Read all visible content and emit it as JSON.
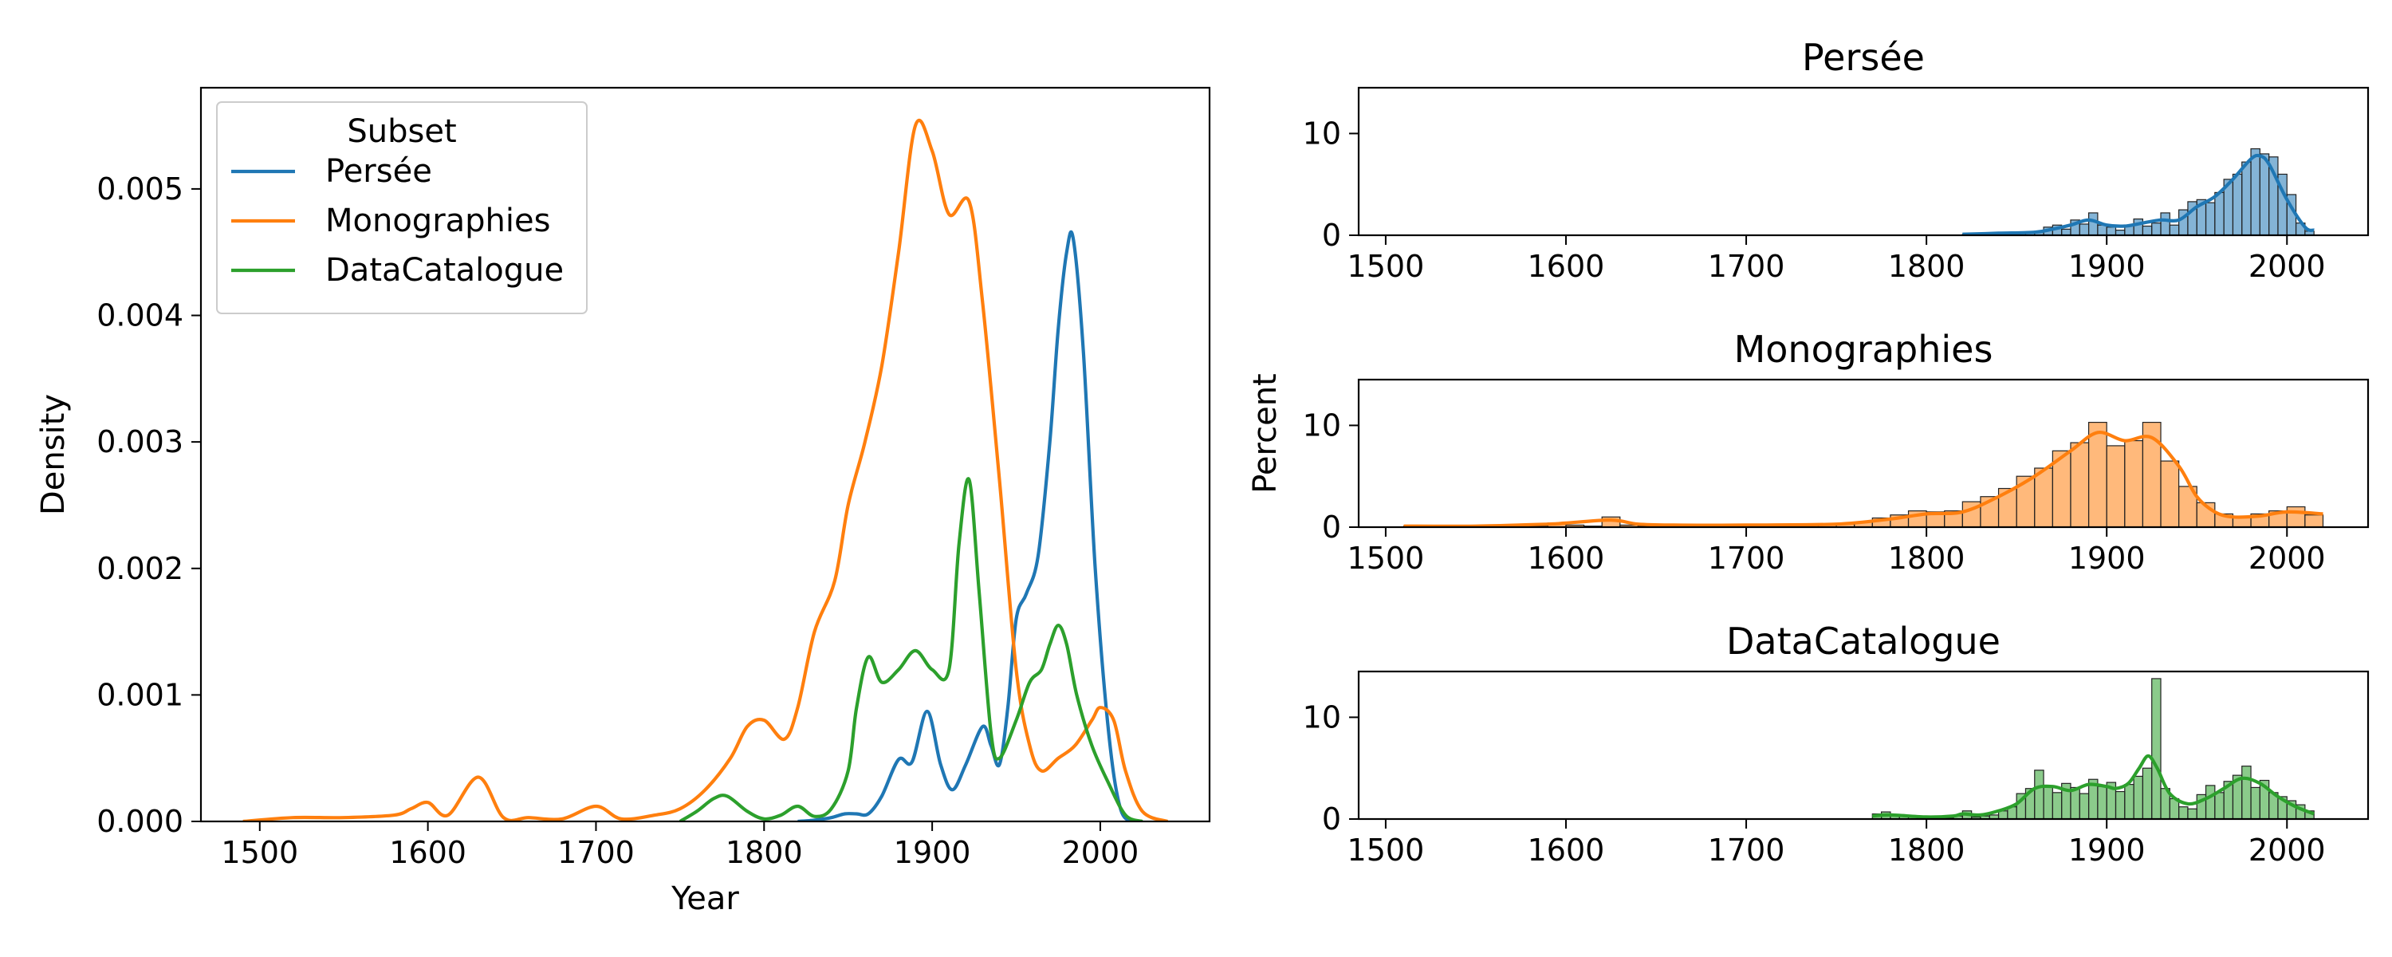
{
  "chart_data": [
    {
      "type": "line",
      "subtype": "kde",
      "xlabel": "Year",
      "ylabel": "Density",
      "xlim": [
        1465,
        2065
      ],
      "ylim": [
        0,
        0.0058
      ],
      "xticks": [
        1500,
        1600,
        1700,
        1800,
        1900,
        2000
      ],
      "yticks": [
        0,
        0.001,
        0.002,
        0.003,
        0.004,
        0.005
      ],
      "ytick_labels": [
        "0.000",
        "0.001",
        "0.002",
        "0.003",
        "0.004",
        "0.005"
      ],
      "legend": {
        "title": "Subset",
        "placement": "upper-left"
      },
      "series": [
        {
          "name": "Persée",
          "color": "#1f77b4",
          "x": [
            1820,
            1830,
            1840,
            1848,
            1855,
            1862,
            1870,
            1880,
            1888,
            1897,
            1905,
            1912,
            1920,
            1930,
            1935,
            1940,
            1945,
            1950,
            1956,
            1963,
            1970,
            1975,
            1980,
            1984,
            1990,
            1997,
            2005,
            2012,
            2020
          ],
          "y": [
            0,
            1e-05,
            3e-05,
            6e-05,
            6e-05,
            6e-05,
            0.0002,
            0.00049,
            0.00047,
            0.00087,
            0.00045,
            0.00025,
            0.00045,
            0.00075,
            0.0006,
            0.00045,
            0.0009,
            0.0016,
            0.0018,
            0.0021,
            0.003,
            0.0039,
            0.0045,
            0.0046,
            0.0037,
            0.002,
            0.0007,
            0.0001,
            0
          ]
        },
        {
          "name": "Monographies",
          "color": "#ff7f0e",
          "x": [
            1490,
            1520,
            1550,
            1580,
            1590,
            1600,
            1612,
            1630,
            1645,
            1660,
            1680,
            1700,
            1715,
            1735,
            1750,
            1765,
            1780,
            1790,
            1800,
            1812,
            1820,
            1830,
            1842,
            1850,
            1860,
            1870,
            1880,
            1890,
            1900,
            1910,
            1922,
            1930,
            1940,
            1950,
            1958,
            1965,
            1975,
            1985,
            1995,
            2000,
            2008,
            2015,
            2025,
            2040
          ],
          "y": [
            0,
            3e-05,
            3e-05,
            5e-05,
            0.0001,
            0.00015,
            5e-05,
            0.00035,
            3e-05,
            3e-05,
            2e-05,
            0.00012,
            2e-05,
            5e-05,
            0.0001,
            0.00025,
            0.0005,
            0.00075,
            0.0008,
            0.00065,
            0.0009,
            0.0015,
            0.0019,
            0.0025,
            0.003,
            0.0036,
            0.0045,
            0.0055,
            0.0053,
            0.0048,
            0.0049,
            0.0041,
            0.0027,
            0.0012,
            0.0006,
            0.0004,
            0.0005,
            0.0006,
            0.0008,
            0.0009,
            0.0008,
            0.0004,
            8e-05,
            0
          ]
        },
        {
          "name": "DataCatalogue",
          "color": "#2ca02c",
          "x": [
            1750,
            1760,
            1770,
            1778,
            1790,
            1800,
            1810,
            1820,
            1830,
            1840,
            1850,
            1855,
            1862,
            1870,
            1880,
            1890,
            1900,
            1910,
            1916,
            1922,
            1928,
            1935,
            1940,
            1950,
            1958,
            1965,
            1970,
            1975,
            1980,
            1986,
            1995,
            2005,
            2015,
            2025
          ],
          "y": [
            0,
            8e-05,
            0.00018,
            0.0002,
            8e-05,
            2e-05,
            5e-05,
            0.00012,
            4e-05,
            0.0001,
            0.0004,
            0.0009,
            0.0013,
            0.0011,
            0.0012,
            0.00135,
            0.0012,
            0.0012,
            0.0022,
            0.0027,
            0.0018,
            0.0007,
            0.0005,
            0.0008,
            0.0011,
            0.0012,
            0.0014,
            0.00155,
            0.0014,
            0.001,
            0.0006,
            0.0003,
            5e-05,
            0
          ]
        }
      ]
    },
    {
      "type": "bar",
      "subtype": "histogram-with-kde",
      "title": "Persée",
      "color": "#1f77b4",
      "xlim": [
        1485,
        2045
      ],
      "ylim": [
        0,
        14.5
      ],
      "xticks": [
        1500,
        1600,
        1700,
        1800,
        1900,
        2000
      ],
      "yticks": [
        0,
        10
      ],
      "bin_width": 5,
      "bins_start": [
        1820,
        1825,
        1830,
        1835,
        1840,
        1845,
        1850,
        1855,
        1860,
        1865,
        1870,
        1875,
        1880,
        1885,
        1890,
        1895,
        1900,
        1905,
        1910,
        1915,
        1920,
        1925,
        1930,
        1935,
        1940,
        1945,
        1950,
        1955,
        1960,
        1965,
        1970,
        1975,
        1980,
        1985,
        1990,
        1995,
        2000,
        2005,
        2010
      ],
      "values": [
        0.1,
        0.1,
        0.2,
        0.1,
        0.2,
        0.3,
        0.2,
        0.3,
        0.4,
        0.8,
        1.0,
        0.6,
        1.5,
        1.1,
        2.2,
        1.0,
        0.8,
        0.5,
        1.0,
        1.6,
        0.9,
        1.2,
        2.2,
        1.0,
        2.5,
        3.3,
        3.5,
        3.2,
        4.2,
        5.5,
        6.0,
        7.2,
        8.5,
        8.0,
        7.7,
        6.0,
        4.0,
        1.2,
        0.4
      ],
      "kde_x": [
        1820,
        1840,
        1860,
        1870,
        1880,
        1890,
        1900,
        1910,
        1920,
        1930,
        1940,
        1950,
        1960,
        1970,
        1980,
        1985,
        1990,
        2000,
        2010,
        2015
      ],
      "kde_y": [
        0.1,
        0.2,
        0.3,
        0.6,
        1.0,
        1.5,
        1.0,
        0.9,
        1.2,
        1.5,
        1.5,
        2.8,
        3.8,
        5.5,
        7.5,
        7.8,
        7.0,
        3.5,
        0.8,
        0.5
      ]
    },
    {
      "type": "bar",
      "subtype": "histogram-with-kde",
      "title": "Monographies",
      "ylabel": "Percent",
      "color": "#ff7f0e",
      "xlim": [
        1485,
        2045
      ],
      "ylim": [
        0,
        14.5
      ],
      "xticks": [
        1500,
        1600,
        1700,
        1800,
        1900,
        2000
      ],
      "yticks": [
        0,
        10
      ],
      "bin_width": 10,
      "bins_start": [
        1510,
        1520,
        1530,
        1540,
        1550,
        1560,
        1570,
        1580,
        1590,
        1600,
        1610,
        1620,
        1630,
        1640,
        1650,
        1660,
        1670,
        1680,
        1690,
        1700,
        1710,
        1720,
        1730,
        1740,
        1750,
        1760,
        1770,
        1780,
        1790,
        1800,
        1810,
        1820,
        1830,
        1840,
        1850,
        1860,
        1870,
        1880,
        1890,
        1900,
        1910,
        1920,
        1930,
        1940,
        1950,
        1960,
        1970,
        1980,
        1990,
        2000,
        2010
      ],
      "values": [
        0.1,
        0.1,
        0.1,
        0.1,
        0.1,
        0.1,
        0.1,
        0.1,
        0.4,
        0.2,
        0.1,
        1.0,
        0.2,
        0.1,
        0.1,
        0.1,
        0.1,
        0.1,
        0.2,
        0.2,
        0.1,
        0.1,
        0.2,
        0.2,
        0.3,
        0.5,
        0.9,
        1.2,
        1.6,
        1.5,
        1.6,
        2.5,
        3.0,
        3.8,
        5.0,
        5.8,
        7.5,
        8.3,
        10.3,
        8.0,
        8.5,
        10.3,
        6.5,
        4.0,
        2.4,
        1.3,
        1.0,
        1.3,
        1.6,
        2.0,
        1.2
      ],
      "kde_x": [
        1510,
        1550,
        1590,
        1600,
        1625,
        1640,
        1660,
        1700,
        1750,
        1780,
        1800,
        1820,
        1840,
        1860,
        1880,
        1895,
        1910,
        1925,
        1940,
        1950,
        1960,
        1970,
        1985,
        2000,
        2020
      ],
      "kde_y": [
        0.1,
        0.1,
        0.3,
        0.4,
        0.7,
        0.3,
        0.2,
        0.2,
        0.3,
        0.8,
        1.3,
        1.5,
        3.0,
        5.0,
        7.5,
        9.3,
        8.5,
        8.8,
        6.0,
        3.0,
        1.5,
        1.0,
        1.1,
        1.5,
        1.3
      ]
    },
    {
      "type": "bar",
      "subtype": "histogram-with-kde",
      "title": "DataCatalogue",
      "color": "#2ca02c",
      "xlim": [
        1485,
        2045
      ],
      "ylim": [
        0,
        14.5
      ],
      "xticks": [
        1500,
        1600,
        1700,
        1800,
        1900,
        2000
      ],
      "yticks": [
        0,
        10
      ],
      "bin_width": 5,
      "bins_start": [
        1770,
        1775,
        1780,
        1785,
        1790,
        1795,
        1800,
        1805,
        1810,
        1815,
        1820,
        1825,
        1830,
        1835,
        1840,
        1845,
        1850,
        1855,
        1860,
        1865,
        1870,
        1875,
        1880,
        1885,
        1890,
        1895,
        1900,
        1905,
        1910,
        1915,
        1920,
        1925,
        1930,
        1935,
        1940,
        1945,
        1950,
        1955,
        1960,
        1965,
        1970,
        1975,
        1980,
        1985,
        1990,
        1995,
        2000,
        2005,
        2010
      ],
      "values": [
        0.5,
        0.7,
        0.4,
        0.3,
        0.2,
        0.1,
        0.1,
        0.1,
        0.1,
        0.3,
        0.8,
        0.2,
        0.3,
        0.4,
        0.8,
        1.2,
        2.5,
        3.0,
        4.8,
        3.2,
        2.6,
        3.5,
        3.1,
        2.5,
        3.9,
        3.2,
        3.6,
        2.7,
        3.4,
        4.2,
        5.0,
        13.8,
        3.0,
        2.0,
        1.2,
        1.0,
        2.4,
        3.3,
        2.6,
        3.7,
        4.3,
        5.2,
        3.1,
        3.8,
        2.6,
        2.2,
        1.8,
        1.4,
        0.8
      ],
      "kde_x": [
        1770,
        1780,
        1800,
        1815,
        1820,
        1830,
        1840,
        1850,
        1860,
        1870,
        1880,
        1890,
        1900,
        1905,
        1912,
        1918,
        1923,
        1928,
        1935,
        1945,
        1955,
        1965,
        1975,
        1985,
        1995,
        2005,
        2015
      ],
      "kde_y": [
        0.3,
        0.4,
        0.2,
        0.3,
        0.5,
        0.4,
        0.8,
        1.5,
        3.0,
        3.2,
        2.8,
        3.4,
        3.2,
        3.0,
        3.5,
        5.0,
        6.2,
        5.0,
        2.5,
        1.5,
        2.0,
        3.0,
        4.0,
        3.5,
        2.2,
        1.2,
        0.5
      ]
    }
  ]
}
